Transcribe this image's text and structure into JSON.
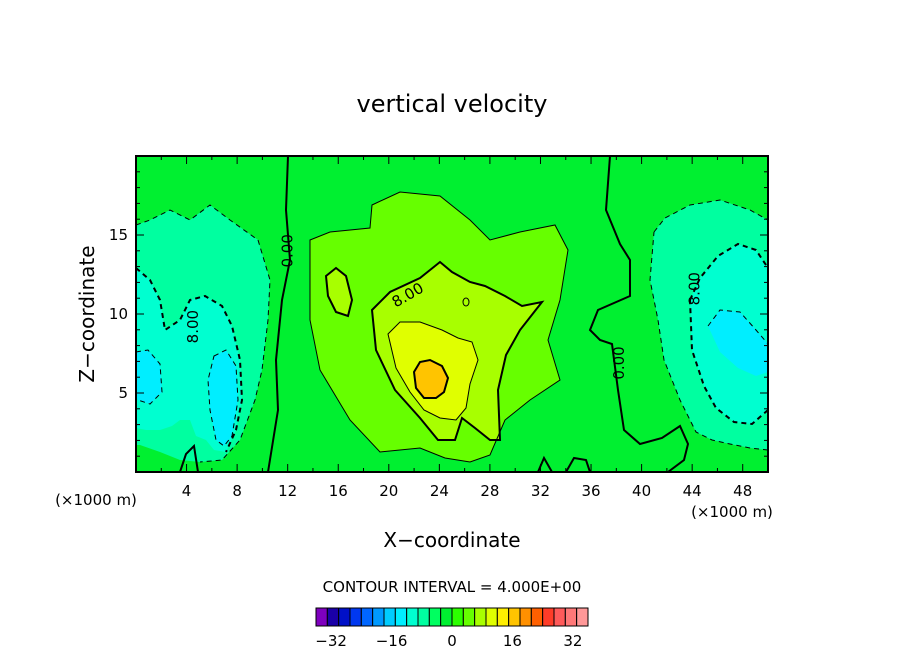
{
  "chart_data": {
    "type": "heatmap",
    "title": "vertical velocity",
    "xlabel": "X−coordinate",
    "ylabel": "Z−coordinate",
    "x_unit": "(×1000 m)",
    "x_unit_right": "(×1000 m)",
    "xlim": [
      0,
      50
    ],
    "ylim": [
      0,
      20
    ],
    "x_ticks": [
      "4",
      "8",
      "12",
      "16",
      "20",
      "24",
      "28",
      "32",
      "36",
      "40",
      "44",
      "48"
    ],
    "y_ticks": [
      "5",
      "10",
      "15"
    ],
    "contour_interval_text": "CONTOUR INTERVAL = 4.000E+00",
    "contour_interval": 4.0,
    "contour_labels": [
      {
        "text": "0.00",
        "x": 12,
        "z": 14
      },
      {
        "text": "8.00",
        "x": 21.5,
        "z": 11.2
      },
      {
        "text": "8.00",
        "x": 4.5,
        "z": 9.2
      },
      {
        "text": "0.00",
        "x": 38.2,
        "z": 6.9
      },
      {
        "text": "8.00",
        "x": 44.2,
        "z": 11.6
      }
    ],
    "colorbar": {
      "min": -36,
      "max": 36,
      "step": 4,
      "tick_labels": [
        "−32",
        "−16",
        "0",
        "16",
        "32"
      ],
      "colors": [
        "#7f00bf",
        "#1a00a8",
        "#0010c8",
        "#0038f0",
        "#0066ff",
        "#0099ff",
        "#00ccff",
        "#00eeff",
        "#00ffd0",
        "#00ffa0",
        "#00ff60",
        "#00f030",
        "#2cff00",
        "#66ff00",
        "#a8ff00",
        "#e0ff00",
        "#ffee00",
        "#ffc400",
        "#ff9000",
        "#ff6000",
        "#ff3c28",
        "#ff5a5a",
        "#ff7878",
        "#ff9898"
      ]
    }
  }
}
